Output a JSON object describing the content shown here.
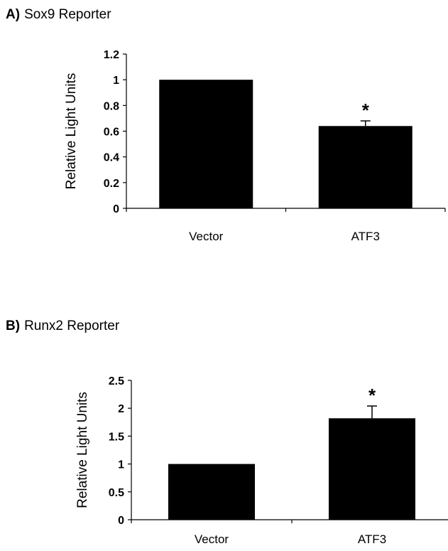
{
  "chart_data": [
    {
      "type": "bar",
      "panel_label": "A)",
      "title": "Sox9 Reporter",
      "categories": [
        "Vector",
        "ATF3"
      ],
      "values": [
        1.0,
        0.64
      ],
      "error_bars": [
        0.0,
        0.04
      ],
      "annotations": [
        "",
        "*"
      ],
      "ylabel": "Relative Light Units",
      "xlabel": "",
      "ylim": [
        0,
        1.2
      ],
      "yticks": [
        "0",
        "0.2",
        "0.4",
        "0.6",
        "0.8",
        "1",
        "1.2"
      ],
      "grid": false,
      "bar_color": "#000000"
    },
    {
      "type": "bar",
      "panel_label": "B)",
      "title": "Runx2 Reporter",
      "categories": [
        "Vector",
        "ATF3"
      ],
      "values": [
        1.0,
        1.82
      ],
      "error_bars": [
        0.0,
        0.22
      ],
      "annotations": [
        "",
        "*"
      ],
      "ylabel": "Relative Light Units",
      "xlabel": "",
      "ylim": [
        0,
        2.5
      ],
      "yticks": [
        "0",
        "0.5",
        "1",
        "1.5",
        "2",
        "2.5"
      ],
      "grid": false,
      "bar_color": "#000000"
    }
  ]
}
